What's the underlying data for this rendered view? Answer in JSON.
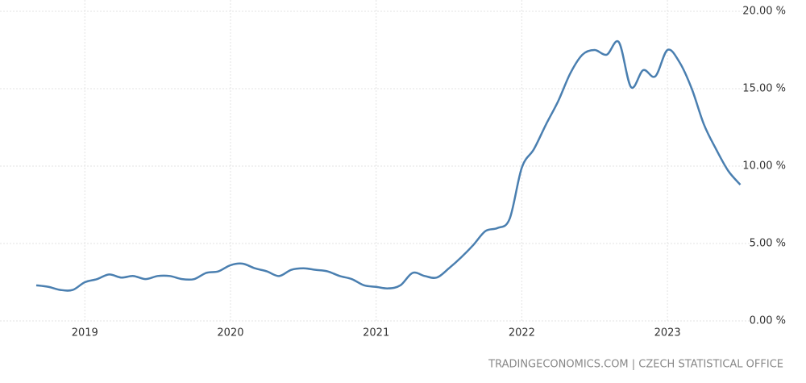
{
  "chart_data": {
    "type": "line",
    "categories": [
      null,
      null,
      null,
      null,
      "2019",
      null,
      null,
      null,
      null,
      null,
      null,
      null,
      null,
      null,
      null,
      null,
      "2020",
      null,
      null,
      null,
      null,
      null,
      null,
      null,
      null,
      null,
      null,
      null,
      "2021",
      null,
      null,
      null,
      null,
      null,
      null,
      null,
      null,
      null,
      null,
      null,
      "2022",
      null,
      null,
      null,
      null,
      null,
      null,
      null,
      null,
      null,
      null,
      null,
      "2023",
      null,
      null,
      null,
      null,
      null,
      null
    ],
    "series": [
      {
        "color": "#4a7fb0",
        "values": [
          2.3,
          2.2,
          2.0,
          2.0,
          2.5,
          2.7,
          3.0,
          2.8,
          2.9,
          2.7,
          2.9,
          2.9,
          2.7,
          2.7,
          3.1,
          3.2,
          3.6,
          3.7,
          3.4,
          3.2,
          2.9,
          3.3,
          3.4,
          3.3,
          3.2,
          2.9,
          2.7,
          2.3,
          2.2,
          2.1,
          2.3,
          3.1,
          2.9,
          2.8,
          3.4,
          4.1,
          4.9,
          5.8,
          6.0,
          6.6,
          9.9,
          11.1,
          12.7,
          14.2,
          16.0,
          17.2,
          17.5,
          17.2,
          18.0,
          15.1,
          16.2,
          15.8,
          17.5,
          16.7,
          15.0,
          12.7,
          11.1,
          9.7,
          8.8
        ]
      }
    ],
    "ylim": [
      0,
      20
    ],
    "yticks": [
      {
        "value": 0,
        "label": "0.00 %"
      },
      {
        "value": 5,
        "label": "5.00 %"
      },
      {
        "value": 10,
        "label": "10.00 %"
      },
      {
        "value": 15,
        "label": "15.00 %"
      },
      {
        "value": 20,
        "label": "20.00 %"
      }
    ],
    "grid": true,
    "source": "TRADINGECONOMICS.COM | CZECH STATISTICAL OFFICE"
  }
}
